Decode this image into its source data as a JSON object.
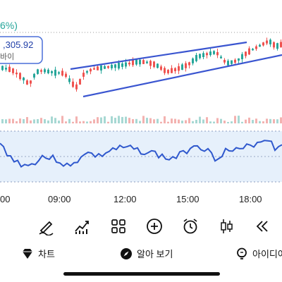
{
  "header": {
    "change_fragment": "6%)",
    "price_badge": ",305.92",
    "price_badge_sub": "바이"
  },
  "time_axis": [
    "00",
    "09:00",
    "12:00",
    "15:00",
    "18:00"
  ],
  "toolbar": {
    "tools": [
      {
        "name": "draw-pen-icon",
        "label": ""
      },
      {
        "name": "indicator-chart-icon",
        "label": ""
      },
      {
        "name": "layout-grid-icon",
        "label": ""
      },
      {
        "name": "add-icon",
        "label": ""
      },
      {
        "name": "alarm-clock-icon",
        "label": ""
      },
      {
        "name": "candlestick-icon",
        "label": ""
      },
      {
        "name": "rewind-icon",
        "label": ""
      }
    ]
  },
  "bottom_nav": {
    "items": [
      {
        "label": "차트",
        "icon": "chart-gem-icon"
      },
      {
        "label": "알아 보기",
        "icon": "explore-compass-icon"
      },
      {
        "label": "아이디어",
        "icon": "ideas-bulb-icon"
      }
    ]
  },
  "colors": {
    "up": "#26a69a",
    "down": "#ef5350",
    "trend_line": "#3a55d0",
    "rsi_line": "#2f58cd",
    "rsi_band": "#e6f0fb"
  }
}
